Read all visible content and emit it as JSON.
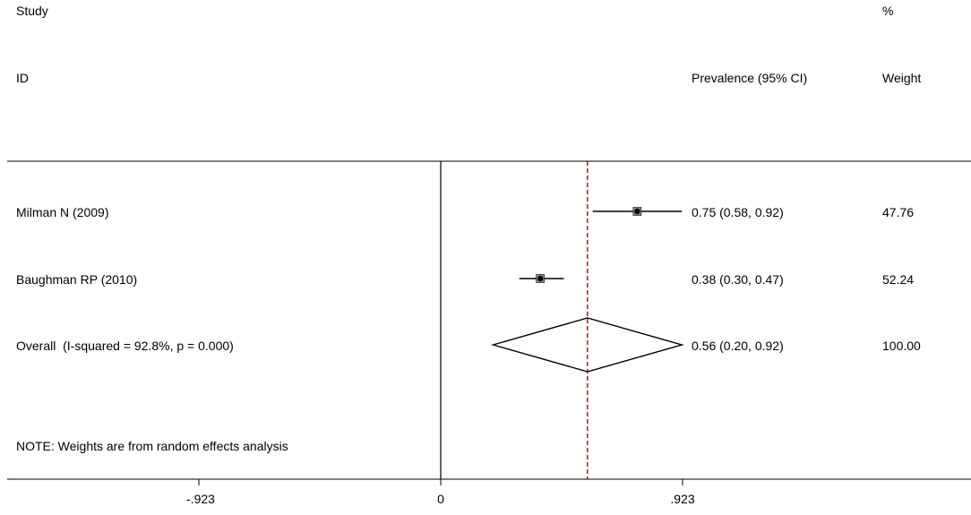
{
  "header": {
    "study_label": "Study",
    "id_label": "ID",
    "estimate_label": "Prevalence (95% CI)",
    "pct_label": "%",
    "weight_label": "Weight"
  },
  "chart_data": {
    "type": "forest",
    "studies": [
      {
        "name": "Milman N (2009)",
        "estimate": 0.75,
        "ci_low": 0.58,
        "ci_high": 0.92,
        "ci_text": "0.75 (0.58, 0.92)",
        "weight": "47.76"
      },
      {
        "name": "Baughman RP (2010)",
        "estimate": 0.38,
        "ci_low": 0.3,
        "ci_high": 0.47,
        "ci_text": "0.38 (0.30, 0.47)",
        "weight": "52.24"
      }
    ],
    "overall": {
      "name": "Overall  (I-squared = 92.8%, p = 0.000)",
      "estimate": 0.56,
      "ci_low": 0.2,
      "ci_high": 0.92,
      "ci_text": "0.56 (0.20, 0.92)",
      "weight": "100.00"
    },
    "xlim": [
      -0.923,
      0.923
    ],
    "xticks": [
      -0.923,
      0,
      0.923
    ],
    "xtick_labels": [
      "-.923",
      "0",
      ".923"
    ],
    "null_value": 0,
    "note": "NOTE: Weights are from random effects analysis",
    "colors": {
      "line": "#000000",
      "overall_ref": "#8b0000",
      "marker_box": "#8c8c8c"
    }
  }
}
